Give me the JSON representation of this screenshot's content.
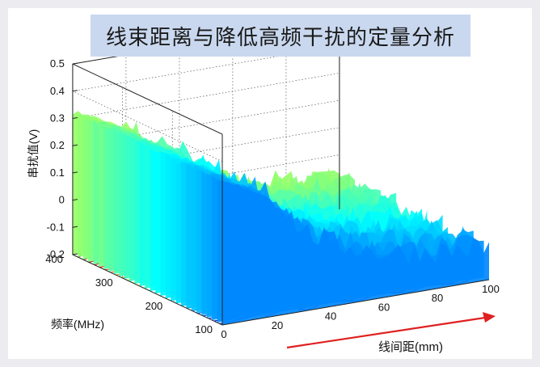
{
  "chart_data": {
    "type": "surface3d",
    "title": "线束距离与降低高频干扰的定量分析",
    "zlabel": "串扰值(V)",
    "xlabel": "线间距(mm)",
    "ylabel": "频率(MHz)",
    "z_ticks": [
      "0.5",
      "0.4",
      "0.3",
      "0.2",
      "0.1",
      "0",
      "-0.1",
      "-0.2"
    ],
    "x_ticks": [
      "0",
      "20",
      "40",
      "60",
      "80",
      "100"
    ],
    "y_ticks": [
      "400",
      "300",
      "200",
      "100"
    ],
    "zlim": [
      -0.2,
      0.5
    ],
    "xlim": [
      0,
      100
    ],
    "ylim": [
      100,
      400
    ],
    "grid": true,
    "colormap": "jet",
    "contour_projection": true,
    "trend": {
      "x_mm": [
        0,
        10,
        20,
        30,
        40,
        60,
        80,
        100
      ],
      "z_peak_v": [
        0.32,
        0.28,
        0.22,
        0.08,
        0.02,
        -0.05,
        -0.08,
        -0.1
      ]
    }
  },
  "colors": {
    "title_box": "#c9d8ef",
    "arrow": "#e02020",
    "surface_high": "#b00000",
    "surface_low": "#00008f"
  }
}
